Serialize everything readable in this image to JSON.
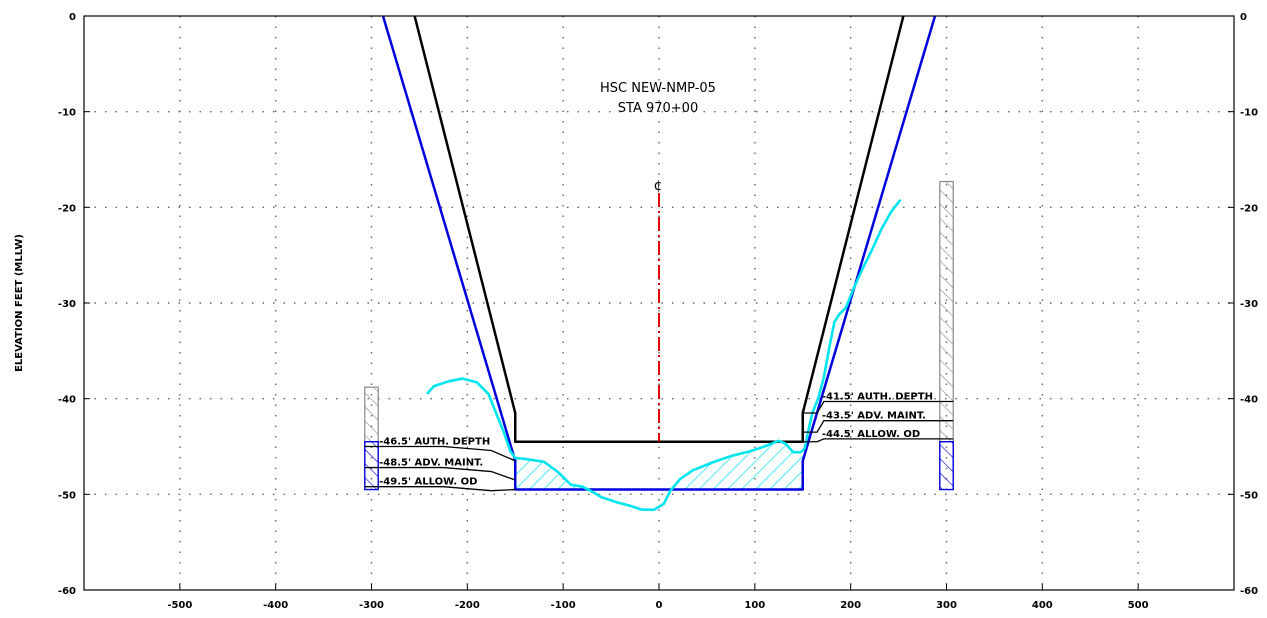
{
  "chart_data": {
    "type": "line",
    "title_lines": [
      "HSC NEW-NMP-05",
      "STA 970+00"
    ],
    "ylabel": "ELEVATION FEET (MLLW)",
    "xlim": [
      -600,
      600
    ],
    "ylim": [
      -60,
      0
    ],
    "xticks": [
      -500,
      -400,
      -300,
      -200,
      -100,
      0,
      100,
      200,
      300,
      400,
      500
    ],
    "yticks": [
      0,
      -10,
      -20,
      -30,
      -40,
      -50,
      -60
    ],
    "grid": true,
    "centerline_symbol": "¢",
    "colors": {
      "authorized": "#000000",
      "overdepth": "#0000dd",
      "survey": "#00e5ee",
      "centerline": "#e00000",
      "hatch_fill": "#00e5ee",
      "grid": "#666666",
      "hatch_gray": "#888888"
    },
    "series": [
      {
        "key": "authorized_template",
        "points": [
          [
            -255,
            0
          ],
          [
            -150,
            -41.5
          ],
          [
            -150,
            -44.5
          ],
          [
            150,
            -44.5
          ],
          [
            150,
            -41.5
          ],
          [
            255,
            0
          ]
        ]
      },
      {
        "key": "overdepth_template",
        "points": [
          [
            -288,
            0
          ],
          [
            -150,
            -46.5
          ],
          [
            -150,
            -49.5
          ],
          [
            150,
            -49.5
          ],
          [
            150,
            -46.5
          ],
          [
            288,
            0
          ]
        ]
      },
      {
        "key": "survey",
        "points": [
          [
            -242,
            -39.5
          ],
          [
            -235,
            -38.7
          ],
          [
            -220,
            -38.2
          ],
          [
            -205,
            -37.9
          ],
          [
            -190,
            -38.3
          ],
          [
            -178,
            -39.5
          ],
          [
            -170,
            -41.5
          ],
          [
            -162,
            -43.5
          ],
          [
            -155,
            -45.5
          ],
          [
            -150,
            -46.2
          ],
          [
            -140,
            -46.3
          ],
          [
            -120,
            -46.6
          ],
          [
            -105,
            -47.7
          ],
          [
            -92,
            -49.0
          ],
          [
            -80,
            -49.2
          ],
          [
            -70,
            -49.7
          ],
          [
            -60,
            -50.3
          ],
          [
            -45,
            -50.8
          ],
          [
            -30,
            -51.2
          ],
          [
            -18,
            -51.6
          ],
          [
            -5,
            -51.6
          ],
          [
            5,
            -51.0
          ],
          [
            12,
            -49.6
          ],
          [
            22,
            -48.4
          ],
          [
            35,
            -47.5
          ],
          [
            55,
            -46.7
          ],
          [
            75,
            -46.0
          ],
          [
            95,
            -45.5
          ],
          [
            110,
            -45.0
          ],
          [
            125,
            -44.4
          ],
          [
            132,
            -44.7
          ],
          [
            140,
            -45.6
          ],
          [
            148,
            -45.6
          ],
          [
            152,
            -45.2
          ],
          [
            156,
            -43.3
          ],
          [
            160,
            -41.5
          ],
          [
            166,
            -40.0
          ],
          [
            172,
            -37.8
          ],
          [
            178,
            -34.5
          ],
          [
            183,
            -32.0
          ],
          [
            188,
            -31.2
          ],
          [
            195,
            -30.5
          ],
          [
            203,
            -28.5
          ],
          [
            212,
            -26.5
          ],
          [
            222,
            -24.5
          ],
          [
            232,
            -22.3
          ],
          [
            242,
            -20.5
          ],
          [
            252,
            -19.2
          ]
        ]
      }
    ],
    "centerline": {
      "x": 0,
      "y_top": -18.5,
      "y_bottom": -44.5
    },
    "left_annotations": [
      "-46.5' AUTH. DEPTH",
      "-48.5' ADV. MAINT.",
      "-49.5' ALLOW. OD"
    ],
    "right_annotations": [
      "-41.5' AUTH. DEPTH",
      "-43.5' ADV. MAINT.",
      "-44.5' ALLOW. OD"
    ],
    "left_levels": [
      -46.5,
      -48.5,
      -49.5
    ],
    "right_levels": [
      -41.5,
      -43.5,
      -44.5
    ],
    "left_bar": {
      "x_center": -300,
      "gray_top": -38.8,
      "gray_bottom": -44.5,
      "blue_bottom": -49.5
    },
    "right_bar": {
      "x_center": 300,
      "gray_top": -17.3,
      "gray_bottom": -44.5,
      "blue_bottom": -49.5
    }
  }
}
